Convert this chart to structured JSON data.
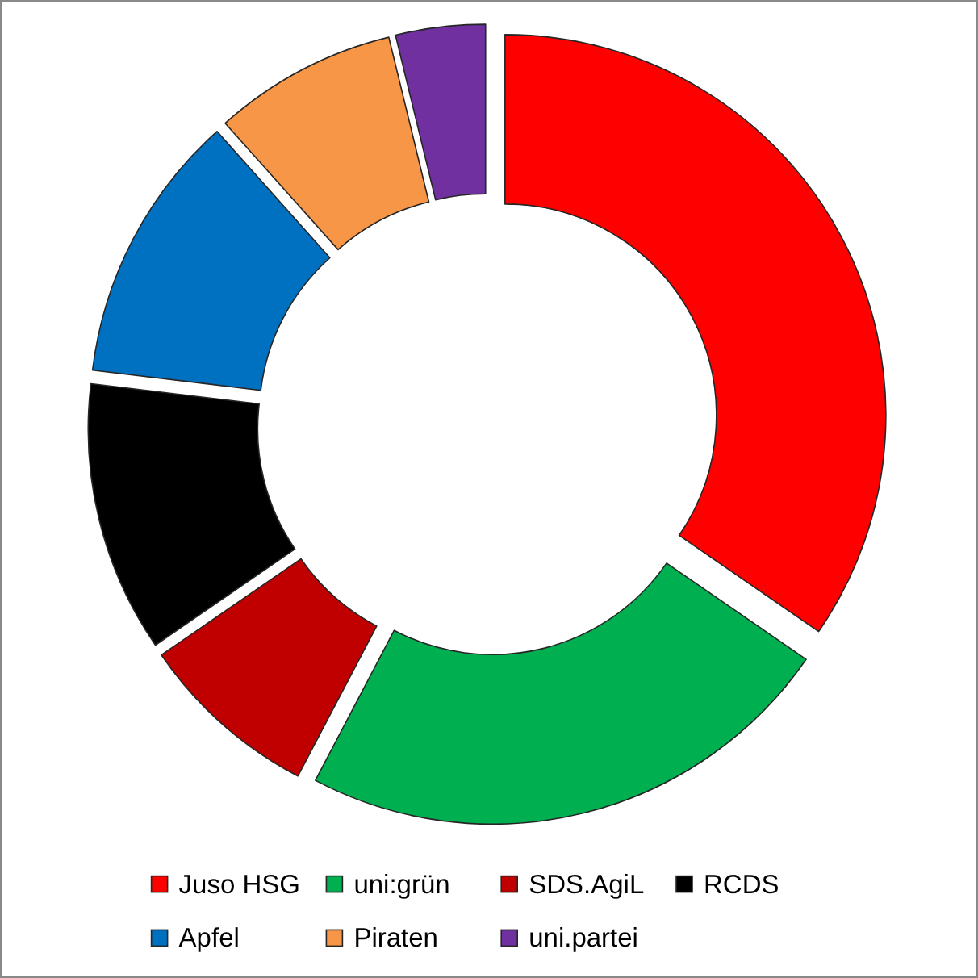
{
  "chart_data": {
    "type": "donut",
    "categories": [
      "Juso HSG",
      "uni:grün",
      "SDS.AgiL",
      "RCDS",
      "Apfel",
      "Piraten",
      "uni.partei"
    ],
    "values": [
      34.6,
      23.1,
      7.7,
      11.5,
      11.5,
      7.8,
      3.8
    ],
    "colors": [
      "#ff0000",
      "#00b050",
      "#c00000",
      "#000000",
      "#0070c0",
      "#f79646",
      "#7030a0"
    ],
    "legend": "bottom"
  }
}
